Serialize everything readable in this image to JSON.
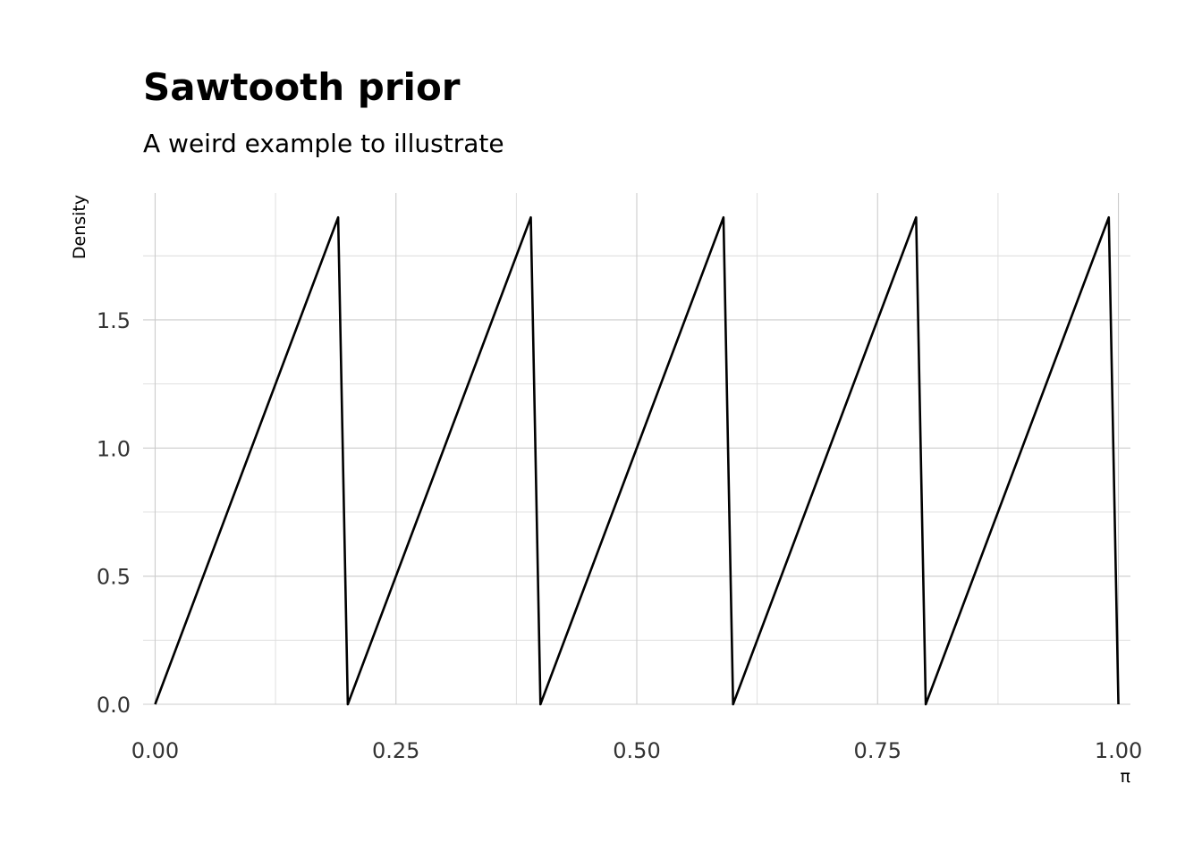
{
  "chart_data": {
    "type": "line",
    "title": "Sawtooth prior",
    "subtitle": "A weird example to illustrate",
    "xlabel": "π",
    "ylabel": "Density",
    "xlim": [
      -0.0125,
      1.0125
    ],
    "ylim": [
      0,
      1.995
    ],
    "grid": true,
    "x_ticks": [
      0.0,
      0.25,
      0.5,
      0.75,
      1.0
    ],
    "x_tick_labels": [
      "0.00",
      "0.25",
      "0.50",
      "0.75",
      "1.00"
    ],
    "y_ticks": [
      0.0,
      0.5,
      1.0,
      1.5
    ],
    "y_tick_labels": [
      "0.0",
      "0.5",
      "1.0",
      "1.5"
    ],
    "series": [
      {
        "x": [
          0.0,
          0.19,
          0.2,
          0.39,
          0.4,
          0.59,
          0.6,
          0.79,
          0.8,
          0.99,
          1.0
        ],
        "y": [
          0.0,
          1.9,
          0.0,
          1.9,
          0.0,
          1.9,
          0.0,
          1.9,
          0.0,
          1.9,
          0.0
        ]
      }
    ]
  }
}
